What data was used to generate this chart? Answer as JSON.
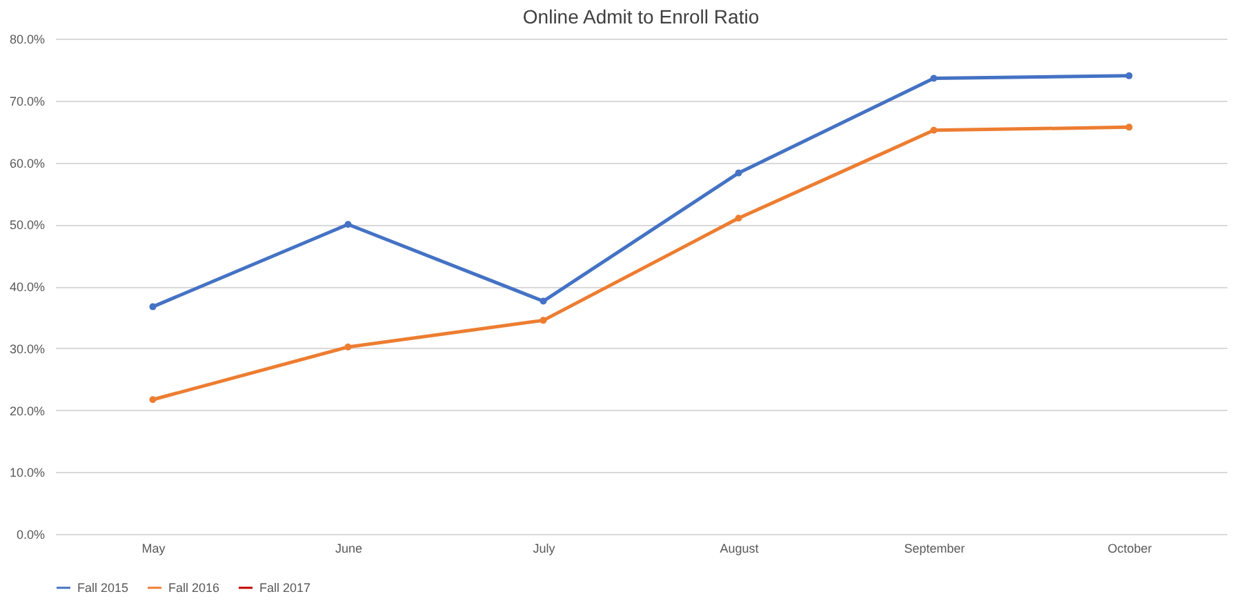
{
  "chart_data": {
    "type": "line",
    "title": "Online Admit to Enroll Ratio",
    "categories": [
      "May",
      "June",
      "July",
      "August",
      "September",
      "October"
    ],
    "series": [
      {
        "name": "Fall 2015",
        "color": "#4472c4",
        "values": [
          36.7,
          50.0,
          37.6,
          58.3,
          73.6,
          74.0
        ]
      },
      {
        "name": "Fall 2016",
        "color": "#ed7d31",
        "values": [
          21.7,
          30.2,
          34.5,
          51.0,
          65.2,
          65.7
        ]
      },
      {
        "name": "Fall 2017",
        "color": "#c00000",
        "values": [
          null,
          null,
          null,
          null,
          null,
          null
        ]
      }
    ],
    "ylim": [
      0,
      80
    ],
    "yticks": [
      {
        "value": 0,
        "label": "0.0%"
      },
      {
        "value": 10,
        "label": "10.0%"
      },
      {
        "value": 20,
        "label": "20.0%"
      },
      {
        "value": 30,
        "label": "30.0%"
      },
      {
        "value": 40,
        "label": "40.0%"
      },
      {
        "value": 50,
        "label": "50.0%"
      },
      {
        "value": 60,
        "label": "60.0%"
      },
      {
        "value": 70,
        "label": "70.0%"
      },
      {
        "value": 80,
        "label": "80.0%"
      }
    ],
    "grid": "y",
    "legend": "bottom",
    "marker": "circle",
    "line_style": "solid"
  }
}
